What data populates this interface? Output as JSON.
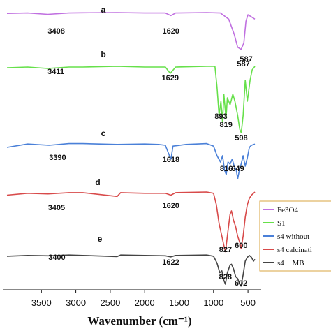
{
  "chart_data": {
    "type": "line",
    "xlabel": "Wavenumber (cm⁻¹)",
    "xlim": [
      4000,
      400
    ],
    "x_ticks": [
      "3500",
      "3000",
      "2500",
      "2000",
      "1500",
      "1000",
      "500"
    ],
    "grid": false,
    "legend_placement": "right",
    "series": [
      {
        "name": "Fe3O4",
        "letter": "a",
        "color": "#c070e0",
        "peaks": [
          "3408",
          "1620",
          "587"
        ],
        "points": [
          [
            4000,
            0.98
          ],
          [
            3700,
            0.99
          ],
          [
            3408,
            0.96
          ],
          [
            3100,
            0.99
          ],
          [
            2900,
            0.995
          ],
          [
            2400,
            1.0
          ],
          [
            2000,
            0.99
          ],
          [
            1700,
            0.99
          ],
          [
            1620,
            0.93
          ],
          [
            1550,
            0.99
          ],
          [
            1100,
            1.0
          ],
          [
            900,
            0.99
          ],
          [
            780,
            0.85
          ],
          [
            700,
            0.5
          ],
          [
            650,
            0.2
          ],
          [
            600,
            0.15
          ],
          [
            560,
            0.3
          ],
          [
            530,
            0.8
          ],
          [
            500,
            0.95
          ],
          [
            450,
            0.9
          ],
          [
            400,
            0.85
          ]
        ]
      },
      {
        "name": "S1",
        "letter": "b",
        "color": "#66e04a",
        "peaks": [
          "3411",
          "1629",
          "893",
          "819",
          "598",
          "587"
        ],
        "points": [
          [
            4000,
            0.98
          ],
          [
            3700,
            0.99
          ],
          [
            3411,
            0.97
          ],
          [
            3100,
            0.99
          ],
          [
            2900,
            0.99
          ],
          [
            2400,
            1.0
          ],
          [
            2000,
            0.99
          ],
          [
            1700,
            0.99
          ],
          [
            1629,
            0.9
          ],
          [
            1550,
            0.99
          ],
          [
            1100,
            1.0
          ],
          [
            980,
            1.0
          ],
          [
            950,
            0.7
          ],
          [
            920,
            0.3
          ],
          [
            893,
            0.5
          ],
          [
            870,
            0.2
          ],
          [
            850,
            0.6
          ],
          [
            819,
            0.25
          ],
          [
            800,
            0.55
          ],
          [
            760,
            0.45
          ],
          [
            720,
            0.6
          ],
          [
            690,
            0.5
          ],
          [
            650,
            0.3
          ],
          [
            620,
            0.1
          ],
          [
            598,
            0.05
          ],
          [
            570,
            0.3
          ],
          [
            540,
            0.8
          ],
          [
            510,
            0.5
          ],
          [
            470,
            0.8
          ],
          [
            440,
            0.95
          ],
          [
            400,
            1.0
          ]
        ]
      },
      {
        "name": "s4 without",
        "letter": "c",
        "color": "#4a80d8",
        "peaks": [
          "3390",
          "1618",
          "816",
          "649"
        ],
        "points": [
          [
            4000,
            0.9
          ],
          [
            3700,
            0.98
          ],
          [
            3390,
            0.95
          ],
          [
            3100,
            0.99
          ],
          [
            2900,
            0.99
          ],
          [
            2400,
            0.97
          ],
          [
            2000,
            0.98
          ],
          [
            1800,
            0.97
          ],
          [
            1700,
            0.95
          ],
          [
            1640,
            0.7
          ],
          [
            1618,
            0.62
          ],
          [
            1590,
            0.93
          ],
          [
            1400,
            0.97
          ],
          [
            1100,
            0.99
          ],
          [
            1000,
            0.93
          ],
          [
            950,
            0.7
          ],
          [
            900,
            0.55
          ],
          [
            870,
            0.7
          ],
          [
            840,
            0.35
          ],
          [
            816,
            0.25
          ],
          [
            790,
            0.55
          ],
          [
            760,
            0.5
          ],
          [
            730,
            0.62
          ],
          [
            700,
            0.45
          ],
          [
            670,
            0.35
          ],
          [
            649,
            0.15
          ],
          [
            620,
            0.4
          ],
          [
            600,
            0.5
          ],
          [
            570,
            0.7
          ],
          [
            540,
            0.45
          ],
          [
            510,
            0.65
          ],
          [
            480,
            0.9
          ],
          [
            450,
            0.95
          ],
          [
            400,
            0.98
          ]
        ]
      },
      {
        "name": "s4 calcinati",
        "letter": "d",
        "color": "#d84a4a",
        "peaks": [
          "3405",
          "1620",
          "827",
          "600"
        ],
        "points": [
          [
            4000,
            0.95
          ],
          [
            3700,
            0.98
          ],
          [
            3405,
            0.97
          ],
          [
            3100,
            0.99
          ],
          [
            2900,
            0.99
          ],
          [
            2400,
            0.93
          ],
          [
            2350,
            0.99
          ],
          [
            2000,
            0.98
          ],
          [
            1700,
            0.98
          ],
          [
            1620,
            0.95
          ],
          [
            1550,
            0.99
          ],
          [
            1100,
            1.0
          ],
          [
            1000,
            0.98
          ],
          [
            960,
            0.8
          ],
          [
            920,
            0.5
          ],
          [
            880,
            0.3
          ],
          [
            850,
            0.15
          ],
          [
            827,
            0.05
          ],
          [
            800,
            0.3
          ],
          [
            760,
            0.65
          ],
          [
            740,
            0.7
          ],
          [
            710,
            0.55
          ],
          [
            680,
            0.45
          ],
          [
            650,
            0.3
          ],
          [
            620,
            0.2
          ],
          [
            600,
            0.1
          ],
          [
            570,
            0.3
          ],
          [
            540,
            0.6
          ],
          [
            510,
            0.8
          ],
          [
            480,
            0.9
          ],
          [
            450,
            0.95
          ],
          [
            400,
            1.0
          ]
        ]
      },
      {
        "name": "s4 + MB",
        "letter": "e",
        "color": "#444444",
        "peaks": [
          "3400",
          "1622",
          "828",
          "602"
        ],
        "points": [
          [
            4000,
            0.93
          ],
          [
            3700,
            0.95
          ],
          [
            3400,
            0.94
          ],
          [
            3100,
            0.96
          ],
          [
            2900,
            0.95
          ],
          [
            2400,
            0.92
          ],
          [
            2350,
            0.96
          ],
          [
            2000,
            0.95
          ],
          [
            1700,
            0.94
          ],
          [
            1622,
            0.91
          ],
          [
            1550,
            0.95
          ],
          [
            1100,
            0.96
          ],
          [
            1000,
            0.93
          ],
          [
            950,
            0.75
          ],
          [
            910,
            0.5
          ],
          [
            880,
            0.55
          ],
          [
            850,
            0.3
          ],
          [
            828,
            0.2
          ],
          [
            800,
            0.5
          ],
          [
            760,
            0.7
          ],
          [
            740,
            0.72
          ],
          [
            710,
            0.6
          ],
          [
            680,
            0.4
          ],
          [
            650,
            0.35
          ],
          [
            620,
            0.2
          ],
          [
            602,
            0.15
          ],
          [
            570,
            0.45
          ],
          [
            540,
            0.8
          ],
          [
            510,
            0.9
          ],
          [
            480,
            0.95
          ],
          [
            450,
            0.9
          ],
          [
            420,
            0.8
          ],
          [
            400,
            0.85
          ]
        ]
      }
    ]
  }
}
